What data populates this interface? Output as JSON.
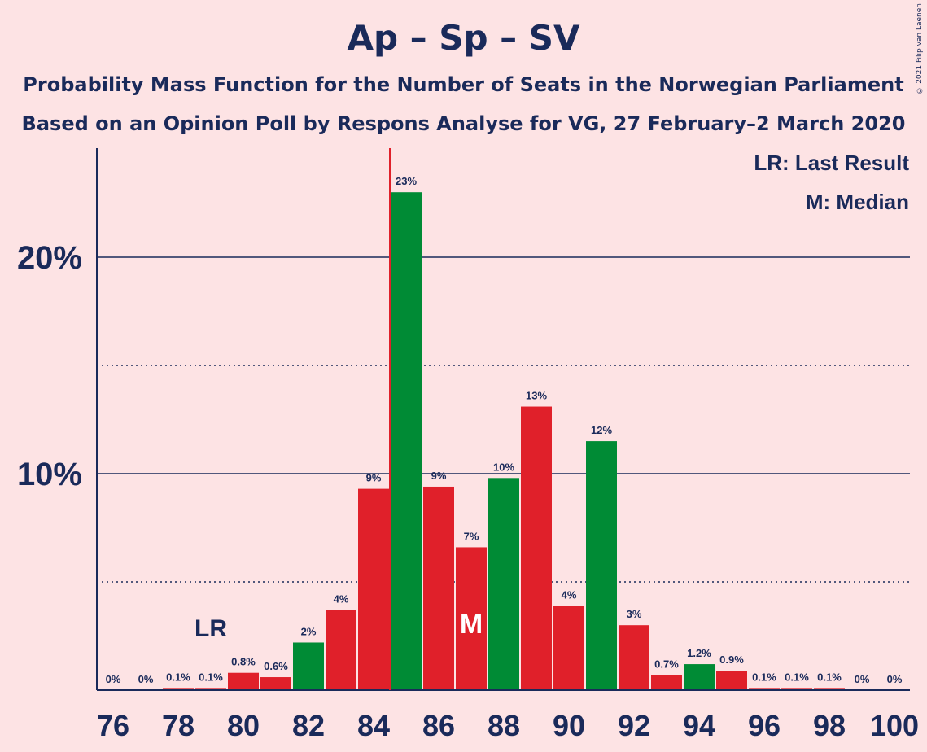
{
  "title": "Ap – Sp – SV",
  "subtitle_1": "Probability Mass Function for the Number of Seats in the Norwegian Parliament",
  "subtitle_2": "Based on an Opinion Poll by Respons Analyse for VG, 27 February–2 March 2020",
  "copyright": "© 2021 Filip van Laenen",
  "legend": {
    "last_result": "LR: Last Result",
    "median": "M: Median"
  },
  "markers": {
    "last_result_label": "LR",
    "last_result_seat": 85,
    "median_label": "M",
    "median_seat": 87
  },
  "colors": {
    "background": "#fde3e4",
    "text": "#1a2a5a",
    "red": "#e0202a",
    "green": "#008b35",
    "axis": "#1a2a5a",
    "lr_line": "#e0202a"
  },
  "chart_data": {
    "type": "bar",
    "x": [
      76,
      77,
      78,
      79,
      80,
      81,
      82,
      83,
      84,
      85,
      86,
      87,
      88,
      89,
      90,
      91,
      92,
      93,
      94,
      95,
      96,
      97,
      98,
      99,
      100
    ],
    "values": [
      0,
      0,
      0.1,
      0.1,
      0.8,
      0.6,
      2.2,
      3.7,
      9.3,
      23.0,
      9.4,
      6.6,
      9.8,
      13.1,
      3.9,
      11.5,
      3.0,
      0.7,
      1.2,
      0.9,
      0.1,
      0.1,
      0.1,
      0,
      0
    ],
    "labels": [
      "0%",
      "0%",
      "0.1%",
      "0.1%",
      "0.8%",
      "0.6%",
      "2%",
      "4%",
      "9%",
      "23%",
      "9%",
      "7%",
      "10%",
      "13%",
      "4%",
      "12%",
      "3%",
      "0.7%",
      "1.2%",
      "0.9%",
      "0.1%",
      "0.1%",
      "0.1%",
      "0%",
      "0%"
    ],
    "bar_colors": [
      "red",
      "red",
      "red",
      "red",
      "red",
      "red",
      "green",
      "red",
      "red",
      "green",
      "red",
      "red",
      "green",
      "red",
      "red",
      "green",
      "red",
      "red",
      "green",
      "red",
      "red",
      "red",
      "red",
      "red",
      "red"
    ],
    "x_tick_labels": [
      "76",
      "78",
      "80",
      "82",
      "84",
      "86",
      "88",
      "90",
      "92",
      "94",
      "96",
      "98",
      "100"
    ],
    "y_tick_labels": [
      "10%",
      "20%"
    ],
    "y_ticks": [
      10,
      20
    ],
    "y_minor_ticks": [
      5,
      15
    ],
    "ylim": [
      0,
      25
    ],
    "grid": true,
    "legend_position": "top-right"
  }
}
